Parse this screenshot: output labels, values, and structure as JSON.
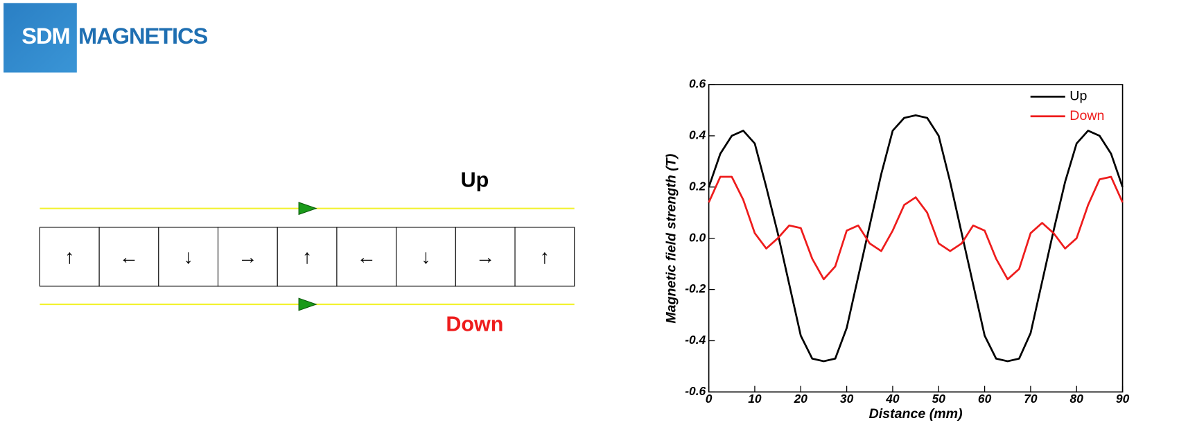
{
  "logo": {
    "left": "SDM",
    "right": "MAGNETICS"
  },
  "diagram": {
    "top_label": "Up",
    "bottom_label": "Down",
    "arrows": [
      "↑",
      "←",
      "↓",
      "→",
      "↑",
      "←",
      "↓",
      "→",
      "↑"
    ]
  },
  "chart_data": {
    "type": "line",
    "xlabel": "Distance (mm)",
    "ylabel": "Magnetic field strength (T)",
    "xlim": [
      0,
      90
    ],
    "ylim": [
      -0.6,
      0.6
    ],
    "xticks": [
      0,
      10,
      20,
      30,
      40,
      50,
      60,
      70,
      80,
      90
    ],
    "yticks": [
      -0.6,
      -0.4,
      -0.2,
      {
        "value": 0,
        "label": "0.0"
      },
      0.2,
      0.4,
      0.6
    ],
    "legend": "upper right",
    "x": [
      0,
      2.5,
      5,
      7.5,
      10,
      12.5,
      15,
      17.5,
      20,
      22.5,
      25,
      27.5,
      30,
      32.5,
      35,
      37.5,
      40,
      42.5,
      45,
      47.5,
      50,
      52.5,
      55,
      57.5,
      60,
      62.5,
      65,
      67.5,
      70,
      72.5,
      75,
      77.5,
      80,
      82.5,
      85,
      87.5,
      90
    ],
    "series": [
      {
        "name": "Up",
        "color": "#000000",
        "values": [
          0.2,
          0.33,
          0.4,
          0.42,
          0.37,
          0.2,
          0.02,
          -0.18,
          -0.38,
          -0.47,
          -0.48,
          -0.47,
          -0.35,
          -0.15,
          0.05,
          0.25,
          0.42,
          0.47,
          0.48,
          0.47,
          0.4,
          0.22,
          0.02,
          -0.18,
          -0.38,
          -0.47,
          -0.48,
          -0.47,
          -0.37,
          -0.17,
          0.03,
          0.22,
          0.37,
          0.42,
          0.4,
          0.33,
          0.2
        ]
      },
      {
        "name": "Down",
        "color": "#ee1c1c",
        "values": [
          0.14,
          0.24,
          0.24,
          0.15,
          0.02,
          -0.04,
          0.0,
          0.05,
          0.04,
          -0.08,
          -0.16,
          -0.11,
          0.03,
          0.05,
          -0.02,
          -0.05,
          0.03,
          0.13,
          0.16,
          0.1,
          -0.02,
          -0.05,
          -0.02,
          0.05,
          0.03,
          -0.08,
          -0.16,
          -0.12,
          0.02,
          0.06,
          0.02,
          -0.04,
          0.0,
          0.13,
          0.23,
          0.24,
          0.14
        ]
      }
    ]
  }
}
